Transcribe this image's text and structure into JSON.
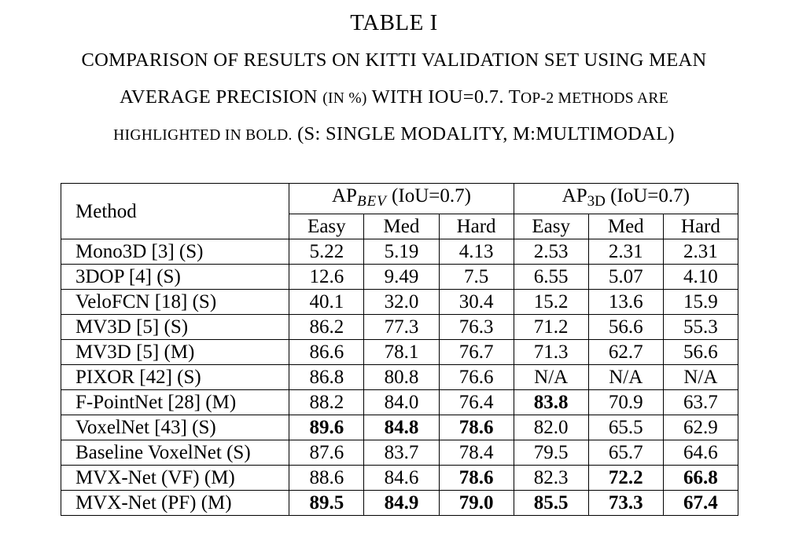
{
  "table_number": "TABLE I",
  "caption": {
    "line1": "COMPARISON OF RESULTS ON KITTI VALIDATION SET USING MEAN",
    "line2_a": "AVERAGE PRECISION ",
    "line2_b": "(IN %)",
    "line2_c": " WITH IOU=0.7. T",
    "line2_d": "OP-2 METHODS ARE",
    "line3_a": "HIGHLIGHTED IN BOLD.",
    "line3_b": " (S: SINGLE MODALITY, M:MULTIMODAL)"
  },
  "header": {
    "method": "Method",
    "group1_prefix": "AP",
    "group1_sub": "BEV",
    "group1_suffix": " (IoU=0.7)",
    "group2_prefix": "AP",
    "group2_sub": "3D",
    "group2_suffix": " (IoU=0.7)",
    "sub": [
      "Easy",
      "Med",
      "Hard",
      "Easy",
      "Med",
      "Hard"
    ]
  },
  "rows": [
    {
      "method": "Mono3D [3] (S)",
      "values": [
        "5.22",
        "5.19",
        "4.13",
        "2.53",
        "2.31",
        "2.31"
      ],
      "bold": [
        false,
        false,
        false,
        false,
        false,
        false
      ]
    },
    {
      "method": "3DOP [4] (S)",
      "values": [
        "12.6",
        "9.49",
        "7.5",
        "6.55",
        "5.07",
        "4.10"
      ],
      "bold": [
        false,
        false,
        false,
        false,
        false,
        false
      ]
    },
    {
      "method": "VeloFCN [18] (S)",
      "values": [
        "40.1",
        "32.0",
        "30.4",
        "15.2",
        "13.6",
        "15.9"
      ],
      "bold": [
        false,
        false,
        false,
        false,
        false,
        false
      ]
    },
    {
      "method": "MV3D [5] (S)",
      "values": [
        "86.2",
        "77.3",
        "76.3",
        "71.2",
        "56.6",
        "55.3"
      ],
      "bold": [
        false,
        false,
        false,
        false,
        false,
        false
      ]
    },
    {
      "method": "MV3D [5] (M)",
      "values": [
        "86.6",
        "78.1",
        "76.7",
        "71.3",
        "62.7",
        "56.6"
      ],
      "bold": [
        false,
        false,
        false,
        false,
        false,
        false
      ]
    },
    {
      "method": "PIXOR [42] (S)",
      "values": [
        "86.8",
        "80.8",
        "76.6",
        "N/A",
        "N/A",
        "N/A"
      ],
      "bold": [
        false,
        false,
        false,
        false,
        false,
        false
      ]
    },
    {
      "method": "F-PointNet [28] (M)",
      "values": [
        "88.2",
        "84.0",
        "76.4",
        "83.8",
        "70.9",
        "63.7"
      ],
      "bold": [
        false,
        false,
        false,
        true,
        false,
        false
      ]
    },
    {
      "method": "VoxelNet [43] (S)",
      "values": [
        "89.6",
        "84.8",
        "78.6",
        "82.0",
        "65.5",
        "62.9"
      ],
      "bold": [
        true,
        true,
        true,
        false,
        false,
        false
      ]
    },
    {
      "method": "Baseline VoxelNet (S)",
      "values": [
        "87.6",
        "83.7",
        "78.4",
        "79.5",
        "65.7",
        "64.6"
      ],
      "bold": [
        false,
        false,
        false,
        false,
        false,
        false
      ]
    },
    {
      "method": "MVX-Net (VF) (M)",
      "values": [
        "88.6",
        "84.6",
        "78.6",
        "82.3",
        "72.2",
        "66.8"
      ],
      "bold": [
        false,
        false,
        true,
        false,
        true,
        true
      ]
    },
    {
      "method": "MVX-Net (PF) (M)",
      "values": [
        "89.5",
        "84.9",
        "79.0",
        "85.5",
        "73.3",
        "67.4"
      ],
      "bold": [
        true,
        true,
        true,
        true,
        true,
        true
      ]
    }
  ]
}
